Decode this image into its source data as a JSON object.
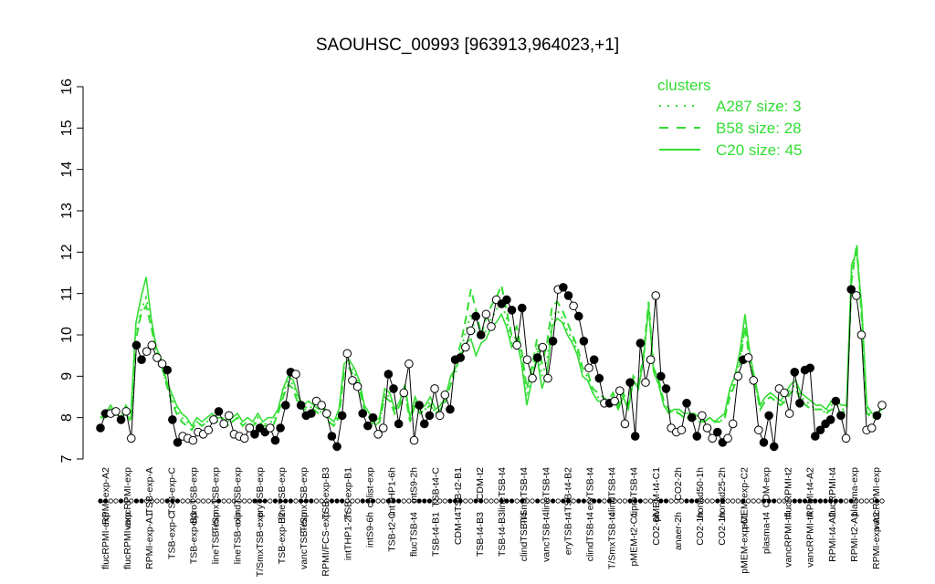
{
  "chart_data": {
    "type": "line",
    "title": "SAOUHSC_00993 [963913,964023,+1]",
    "xlabel": "",
    "ylabel": "",
    "ylim": [
      7,
      16
    ],
    "yticks": [
      7,
      8,
      9,
      10,
      11,
      12,
      13,
      14,
      15,
      16
    ],
    "grid": false,
    "legend_position": "top-right",
    "legend_title": "clusters",
    "legend": [
      {
        "label": "A287 size: 3",
        "style": "dotted",
        "color": "#33dd33"
      },
      {
        "label": "B58 size: 28",
        "style": "dashed",
        "color": "#33dd33"
      },
      {
        "label": "C20 size: 45",
        "style": "solid",
        "color": "#33dd33"
      }
    ],
    "colors": {
      "data_line": "#000000",
      "cluster_line": "#33dd33"
    },
    "x_labels_upper": [
      "RPMI-exp-A2",
      "vancRPMI-exp",
      "TSB-exp-A",
      "TSB-exp-C",
      "ciproTSB-exp",
      "T/SmxTSB-exp",
      "clindTSB-exp",
      "eryTSB-exp",
      "lineTSB-exp",
      "T/SmxTSB-exp",
      "TSB-exp-B3",
      "TSB-exp-B1",
      "colist-exp",
      "intTHP1-6h",
      "intS9-2h",
      "TSB-t4-C",
      "TSB-t2-B1",
      "CDM-t2",
      "lineTSB-t4",
      "T/SmxTSB-t4",
      "lineTSB-t4",
      "TSB-t4-B2",
      "eryTSB-t4",
      "clindTSB-t4",
      "ciproTSB-t4",
      "pMEM-t4-C1",
      "CO2-2h",
      "nonad50-1h",
      "nonad25-2h",
      "pMEM-exp-C2",
      "CDM-exp",
      "flucRPMI-t2",
      "RPMI-t4-A2",
      "flucRPMI-t4",
      "plasma-exp",
      "vancRPMI-exp"
    ],
    "x_labels_lower": [
      "flucRPMI-exp",
      "flucRPMI-exp",
      "RPMI-exp-A1",
      "TSB-exp-C",
      "TSB-exp-B3",
      "lineTSB-exp",
      "lineTSB-exp",
      "T/SmxTSB-exp",
      "TSB-exp-B2",
      "vancTSB-exp",
      "RPMI/FCS-exp",
      "intTHP1-2h",
      "intS9-6h",
      "TSB-t2-C",
      "flucTSB-t4",
      "TSB-t4-B1",
      "CDM-t4",
      "TSB-t4-B3",
      "TSB-t4-B3",
      "clindTSB-t4",
      "vancTSB-t4",
      "eryTSB-t4",
      "clindTSB-t4",
      "T/SmxTSB-t4",
      "pMEM-t2-C1",
      "CO2-6h",
      "anaer-2h",
      "CO2-1h",
      "CO2-1h",
      "pMEM-exp-C1",
      "plasma-t4",
      "vancRPMI-t4",
      "vancRPMI-t4",
      "RPMI-t4-A2",
      "RPMI-t2-A1",
      "RPMI-exp-A2"
    ],
    "points": [
      {
        "y": 7.75,
        "filled": true
      },
      {
        "y": 8.1,
        "filled": true
      },
      {
        "y": 8.1,
        "filled": false
      },
      {
        "y": 8.15,
        "filled": false
      },
      {
        "y": 7.95,
        "filled": true
      },
      {
        "y": 8.15,
        "filled": false
      },
      {
        "y": 7.5,
        "filled": false
      },
      {
        "y": 9.75,
        "filled": true
      },
      {
        "y": 9.4,
        "filled": true
      },
      {
        "y": 9.6,
        "filled": false
      },
      {
        "y": 9.75,
        "filled": false
      },
      {
        "y": 9.45,
        "filled": false
      },
      {
        "y": 9.3,
        "filled": false
      },
      {
        "y": 9.15,
        "filled": true
      },
      {
        "y": 7.95,
        "filled": true
      },
      {
        "y": 7.4,
        "filled": true
      },
      {
        "y": 7.55,
        "filled": false
      },
      {
        "y": 7.5,
        "filled": false
      },
      {
        "y": 7.45,
        "filled": false
      },
      {
        "y": 7.65,
        "filled": false
      },
      {
        "y": 7.6,
        "filled": false
      },
      {
        "y": 7.7,
        "filled": false
      },
      {
        "y": 7.95,
        "filled": false
      },
      {
        "y": 8.15,
        "filled": true
      },
      {
        "y": 7.85,
        "filled": false
      },
      {
        "y": 8.05,
        "filled": false
      },
      {
        "y": 7.6,
        "filled": false
      },
      {
        "y": 7.55,
        "filled": false
      },
      {
        "y": 7.5,
        "filled": false
      },
      {
        "y": 7.75,
        "filled": false
      },
      {
        "y": 7.6,
        "filled": true
      },
      {
        "y": 7.75,
        "filled": true
      },
      {
        "y": 7.65,
        "filled": true
      },
      {
        "y": 7.75,
        "filled": false
      },
      {
        "y": 7.45,
        "filled": true
      },
      {
        "y": 7.75,
        "filled": true
      },
      {
        "y": 8.3,
        "filled": true
      },
      {
        "y": 9.1,
        "filled": true
      },
      {
        "y": 9.05,
        "filled": false
      },
      {
        "y": 8.3,
        "filled": true
      },
      {
        "y": 8.05,
        "filled": true
      },
      {
        "y": 8.1,
        "filled": true
      },
      {
        "y": 8.4,
        "filled": false
      },
      {
        "y": 8.3,
        "filled": false
      },
      {
        "y": 8.1,
        "filled": false
      },
      {
        "y": 7.55,
        "filled": true
      },
      {
        "y": 7.3,
        "filled": true
      },
      {
        "y": 8.05,
        "filled": true
      },
      {
        "y": 9.55,
        "filled": false
      },
      {
        "y": 8.9,
        "filled": false
      },
      {
        "y": 8.75,
        "filled": false
      },
      {
        "y": 8.1,
        "filled": true
      },
      {
        "y": 7.8,
        "filled": true
      },
      {
        "y": 8.0,
        "filled": true
      },
      {
        "y": 7.6,
        "filled": false
      },
      {
        "y": 7.75,
        "filled": false
      },
      {
        "y": 9.05,
        "filled": true
      },
      {
        "y": 8.7,
        "filled": true
      },
      {
        "y": 7.85,
        "filled": true
      },
      {
        "y": 8.6,
        "filled": false
      },
      {
        "y": 9.3,
        "filled": false
      },
      {
        "y": 7.45,
        "filled": false
      },
      {
        "y": 8.3,
        "filled": true
      },
      {
        "y": 7.85,
        "filled": true
      },
      {
        "y": 8.05,
        "filled": true
      },
      {
        "y": 8.7,
        "filled": false
      },
      {
        "y": 8.05,
        "filled": false
      },
      {
        "y": 8.55,
        "filled": false
      },
      {
        "y": 8.2,
        "filled": true
      },
      {
        "y": 9.4,
        "filled": true
      },
      {
        "y": 9.45,
        "filled": true
      },
      {
        "y": 9.7,
        "filled": false
      },
      {
        "y": 10.1,
        "filled": false
      },
      {
        "y": 10.45,
        "filled": true
      },
      {
        "y": 10.0,
        "filled": true
      },
      {
        "y": 10.5,
        "filled": false
      },
      {
        "y": 10.2,
        "filled": false
      },
      {
        "y": 10.85,
        "filled": false
      },
      {
        "y": 10.75,
        "filled": true
      },
      {
        "y": 10.85,
        "filled": true
      },
      {
        "y": 10.6,
        "filled": true
      },
      {
        "y": 9.75,
        "filled": false
      },
      {
        "y": 10.65,
        "filled": true
      },
      {
        "y": 9.4,
        "filled": false
      },
      {
        "y": 8.95,
        "filled": false
      },
      {
        "y": 9.45,
        "filled": true
      },
      {
        "y": 9.7,
        "filled": false
      },
      {
        "y": 8.95,
        "filled": false
      },
      {
        "y": 9.85,
        "filled": true
      },
      {
        "y": 11.1,
        "filled": false
      },
      {
        "y": 11.15,
        "filled": true
      },
      {
        "y": 10.95,
        "filled": true
      },
      {
        "y": 10.7,
        "filled": false
      },
      {
        "y": 10.45,
        "filled": true
      },
      {
        "y": 9.85,
        "filled": true
      },
      {
        "y": 9.2,
        "filled": false
      },
      {
        "y": 9.4,
        "filled": true
      },
      {
        "y": 8.95,
        "filled": true
      },
      {
        "y": 8.35,
        "filled": false
      },
      {
        "y": 8.35,
        "filled": true
      },
      {
        "y": 8.4,
        "filled": false
      },
      {
        "y": 8.65,
        "filled": false
      },
      {
        "y": 7.85,
        "filled": false
      },
      {
        "y": 8.85,
        "filled": true
      },
      {
        "y": 7.55,
        "filled": true
      },
      {
        "y": 9.8,
        "filled": true
      },
      {
        "y": 8.85,
        "filled": false
      },
      {
        "y": 9.4,
        "filled": false
      },
      {
        "y": 10.95,
        "filled": false
      },
      {
        "y": 9.0,
        "filled": true
      },
      {
        "y": 8.7,
        "filled": true
      },
      {
        "y": 7.75,
        "filled": false
      },
      {
        "y": 7.65,
        "filled": false
      },
      {
        "y": 7.7,
        "filled": false
      },
      {
        "y": 8.35,
        "filled": true
      },
      {
        "y": 8.0,
        "filled": true
      },
      {
        "y": 7.55,
        "filled": true
      },
      {
        "y": 8.05,
        "filled": false
      },
      {
        "y": 7.75,
        "filled": false
      },
      {
        "y": 7.5,
        "filled": false
      },
      {
        "y": 7.65,
        "filled": true
      },
      {
        "y": 7.4,
        "filled": true
      },
      {
        "y": 7.5,
        "filled": false
      },
      {
        "y": 7.85,
        "filled": false
      },
      {
        "y": 9.0,
        "filled": false
      },
      {
        "y": 9.4,
        "filled": true
      },
      {
        "y": 9.45,
        "filled": false
      },
      {
        "y": 8.9,
        "filled": false
      },
      {
        "y": 7.7,
        "filled": false
      },
      {
        "y": 7.4,
        "filled": true
      },
      {
        "y": 8.05,
        "filled": true
      },
      {
        "y": 7.3,
        "filled": true
      },
      {
        "y": 8.7,
        "filled": false
      },
      {
        "y": 8.6,
        "filled": false
      },
      {
        "y": 8.1,
        "filled": false
      },
      {
        "y": 9.1,
        "filled": true
      },
      {
        "y": 8.35,
        "filled": true
      },
      {
        "y": 9.15,
        "filled": true
      },
      {
        "y": 9.2,
        "filled": true
      },
      {
        "y": 7.55,
        "filled": true
      },
      {
        "y": 7.7,
        "filled": true
      },
      {
        "y": 7.85,
        "filled": true
      },
      {
        "y": 7.95,
        "filled": true
      },
      {
        "y": 8.4,
        "filled": true
      },
      {
        "y": 8.05,
        "filled": true
      },
      {
        "y": 7.5,
        "filled": false
      },
      {
        "y": 11.1,
        "filled": true
      },
      {
        "y": 10.95,
        "filled": false
      },
      {
        "y": 10.0,
        "filled": false
      },
      {
        "y": 7.7,
        "filled": false
      },
      {
        "y": 7.75,
        "filled": false
      },
      {
        "y": 8.05,
        "filled": true
      },
      {
        "y": 8.3,
        "filled": false
      }
    ],
    "clusters": [
      {
        "name": "C20",
        "style": "solid",
        "y": [
          8.1,
          8.1,
          8.3,
          8.1,
          8.0,
          8.3,
          8.1,
          10.3,
          10.9,
          11.4,
          10.4,
          9.7,
          9.4,
          8.9,
          8.6,
          8.3,
          8.1,
          8.0,
          7.8,
          8.0,
          7.9,
          8.0,
          8.1,
          8.0,
          8.0,
          7.9,
          8.0,
          8.1,
          7.9,
          8.0,
          7.9,
          8.1,
          7.9,
          8.0,
          8.0,
          8.2,
          8.7,
          9.0,
          8.9,
          8.5,
          8.3,
          8.4,
          8.3,
          8.2,
          8.3,
          8.0,
          7.9,
          8.2,
          9.3,
          9.4,
          9.2,
          8.9,
          8.3,
          8.1,
          7.9,
          8.0,
          8.7,
          8.6,
          8.2,
          8.4,
          8.8,
          8.0,
          8.5,
          8.2,
          8.3,
          8.5,
          8.2,
          8.3,
          8.5,
          9.0,
          9.2,
          9.5,
          9.8,
          9.9,
          9.5,
          9.8,
          9.9,
          10.2,
          10.3,
          10.5,
          10.2,
          9.7,
          9.9,
          9.3,
          8.3,
          8.9,
          9.5,
          8.7,
          9.1,
          10.2,
          10.4,
          10.3,
          10.0,
          9.8,
          9.5,
          9.0,
          8.9,
          8.6,
          8.4,
          8.4,
          8.3,
          8.5,
          8.2,
          8.5,
          8.2,
          8.9,
          8.7,
          9.4,
          10.7,
          9.1,
          8.8,
          8.3,
          8.1,
          8.2,
          8.2,
          8.1,
          8.1,
          8.1,
          8.0,
          7.9,
          8.0,
          7.9,
          8.0,
          8.1,
          8.7,
          9.0,
          9.6,
          10.5,
          9.5,
          8.9,
          8.3,
          8.5,
          8.6,
          8.5,
          8.4,
          8.6,
          8.8,
          8.9,
          8.6,
          8.5,
          8.4,
          8.3,
          8.3,
          8.2,
          8.4,
          8.4,
          8.3,
          8.3,
          11.7,
          12.0,
          10.7,
          8.3,
          8.1,
          8.1,
          8.2
        ]
      },
      {
        "name": "B58",
        "style": "dashed",
        "y": [
          8.0,
          8.0,
          8.2,
          8.0,
          7.9,
          8.1,
          7.9,
          9.9,
          10.5,
          10.7,
          10.2,
          9.6,
          9.3,
          8.8,
          8.4,
          8.1,
          7.9,
          7.8,
          7.7,
          7.9,
          7.8,
          7.9,
          8.0,
          8.0,
          7.9,
          7.8,
          7.9,
          8.0,
          7.8,
          7.9,
          7.8,
          7.9,
          7.8,
          7.8,
          7.8,
          8.1,
          8.5,
          8.8,
          8.7,
          8.3,
          8.2,
          8.2,
          8.2,
          8.1,
          8.2,
          7.9,
          7.8,
          8.0,
          9.1,
          9.2,
          9.0,
          8.7,
          8.2,
          8.0,
          7.8,
          7.9,
          8.5,
          8.4,
          8.1,
          8.3,
          8.6,
          7.9,
          8.3,
          8.1,
          8.2,
          8.3,
          8.1,
          8.2,
          8.4,
          8.8,
          9.3,
          9.8,
          10.4,
          11.1,
          10.6,
          10.0,
          10.4,
          10.7,
          10.9,
          11.2,
          10.6,
          10.0,
          10.2,
          9.6,
          8.7,
          9.2,
          9.9,
          9.3,
          9.8,
          10.7,
          10.8,
          10.6,
          10.3,
          10.0,
          9.7,
          9.2,
          9.1,
          8.7,
          8.6,
          8.5,
          8.4,
          8.6,
          8.3,
          8.6,
          8.3,
          9.0,
          8.8,
          9.5,
          10.8,
          9.2,
          8.9,
          8.4,
          8.2,
          8.1,
          8.1,
          8.0,
          8.0,
          8.0,
          7.9,
          7.9,
          8.0,
          7.9,
          7.9,
          8.0,
          8.5,
          8.8,
          9.3,
          10.2,
          9.3,
          8.8,
          8.2,
          8.4,
          8.5,
          8.4,
          8.3,
          8.4,
          8.6,
          8.7,
          8.4,
          8.3,
          8.2,
          8.2,
          8.2,
          8.1,
          8.2,
          8.2,
          8.1,
          8.2,
          11.3,
          12.2,
          10.4,
          8.1,
          8.0,
          8.0,
          8.1
        ]
      },
      {
        "name": "A287",
        "style": "dotted",
        "y": [
          8.0,
          8.1,
          8.2,
          8.0,
          7.9,
          8.2,
          8.0,
          10.0,
          10.6,
          10.9,
          10.3,
          9.6,
          9.3,
          8.8,
          8.5,
          8.2,
          8.0,
          7.9,
          7.8,
          7.9,
          7.8,
          7.9,
          8.0,
          7.9,
          7.9,
          7.8,
          7.9,
          8.0,
          7.8,
          7.9,
          7.8,
          8.0,
          7.8,
          7.9,
          7.9,
          8.1,
          8.6,
          8.9,
          8.8,
          8.4,
          8.2,
          8.3,
          8.2,
          8.1,
          8.2,
          7.9,
          7.8,
          8.1,
          9.2,
          9.3,
          9.1,
          8.8,
          8.2,
          8.0,
          7.8,
          7.9,
          8.6,
          8.5,
          8.1,
          8.3,
          8.7,
          7.9,
          8.4,
          8.1,
          8.2,
          8.4,
          8.1,
          8.2,
          8.4,
          8.8,
          9.1,
          9.6,
          10.1,
          10.5,
          10.0,
          9.9,
          10.1,
          10.4,
          10.6,
          10.8,
          10.4,
          9.8,
          10.0,
          9.4,
          8.5,
          9.0,
          9.7,
          9.0,
          9.4,
          10.4,
          10.6,
          10.4,
          10.1,
          9.9,
          9.6,
          9.1,
          9.0,
          8.6,
          8.5,
          8.4,
          8.3,
          8.5,
          8.2,
          8.5,
          8.2,
          8.9,
          8.7,
          9.4,
          10.7,
          9.1,
          8.8,
          8.3,
          8.1,
          8.2,
          8.1,
          8.0,
          8.0,
          8.0,
          7.9,
          7.9,
          8.0,
          7.9,
          7.9,
          8.0,
          8.6,
          8.9,
          9.4,
          10.3,
          9.4,
          8.8,
          8.2,
          8.4,
          8.5,
          8.4,
          8.3,
          8.5,
          8.7,
          8.8,
          8.5,
          8.4,
          8.3,
          8.2,
          8.2,
          8.1,
          8.3,
          8.3,
          8.2,
          8.2,
          11.5,
          12.1,
          10.5,
          8.2,
          8.0,
          8.0,
          8.1
        ]
      }
    ]
  }
}
